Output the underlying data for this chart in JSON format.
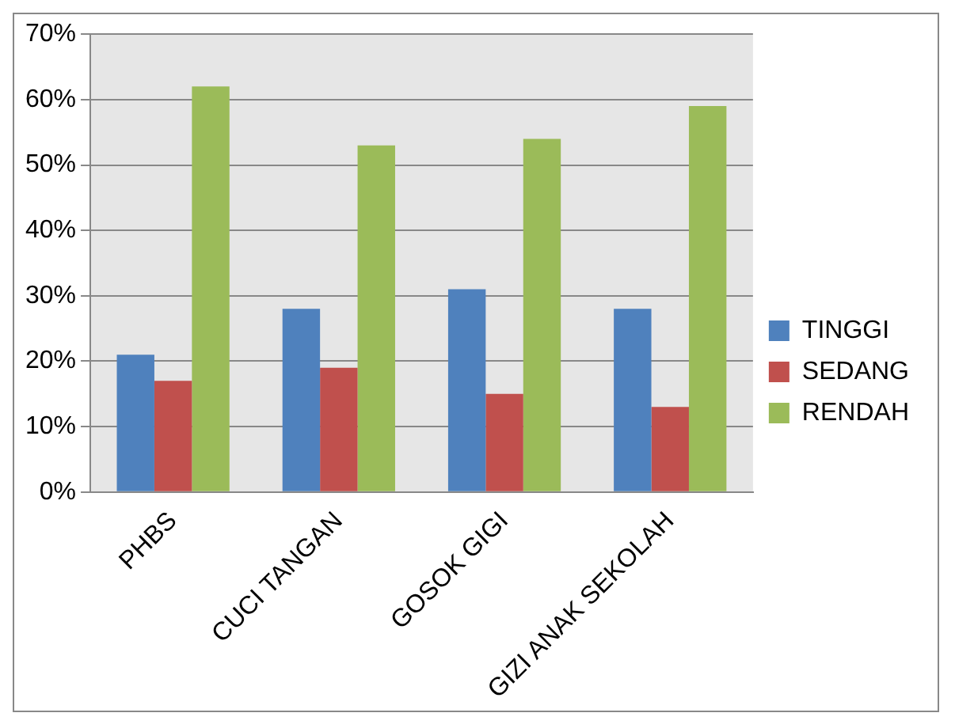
{
  "chart_data": {
    "type": "bar",
    "categories": [
      "PHBS",
      "CUCI TANGAN",
      "GOSOK GIGI",
      "GIZI ANAK SEKOLAH"
    ],
    "series": [
      {
        "name": "TINGGI",
        "color": "#4f81bd",
        "values": [
          21,
          28,
          31,
          28
        ]
      },
      {
        "name": "SEDANG",
        "color": "#c0504d",
        "values": [
          17,
          19,
          15,
          13
        ]
      },
      {
        "name": "RENDAH",
        "color": "#9bbb59",
        "values": [
          62,
          53,
          54,
          59
        ]
      }
    ],
    "ylim": [
      0,
      70
    ],
    "yticks": [
      {
        "value": 0,
        "label": "0%"
      },
      {
        "value": 10,
        "label": "10%"
      },
      {
        "value": 20,
        "label": "20%"
      },
      {
        "value": 30,
        "label": "30%"
      },
      {
        "value": 40,
        "label": "40%"
      },
      {
        "value": 50,
        "label": "50%"
      },
      {
        "value": 60,
        "label": "60%"
      },
      {
        "value": 70,
        "label": "70%"
      }
    ],
    "grid": "y",
    "legend": "right"
  }
}
